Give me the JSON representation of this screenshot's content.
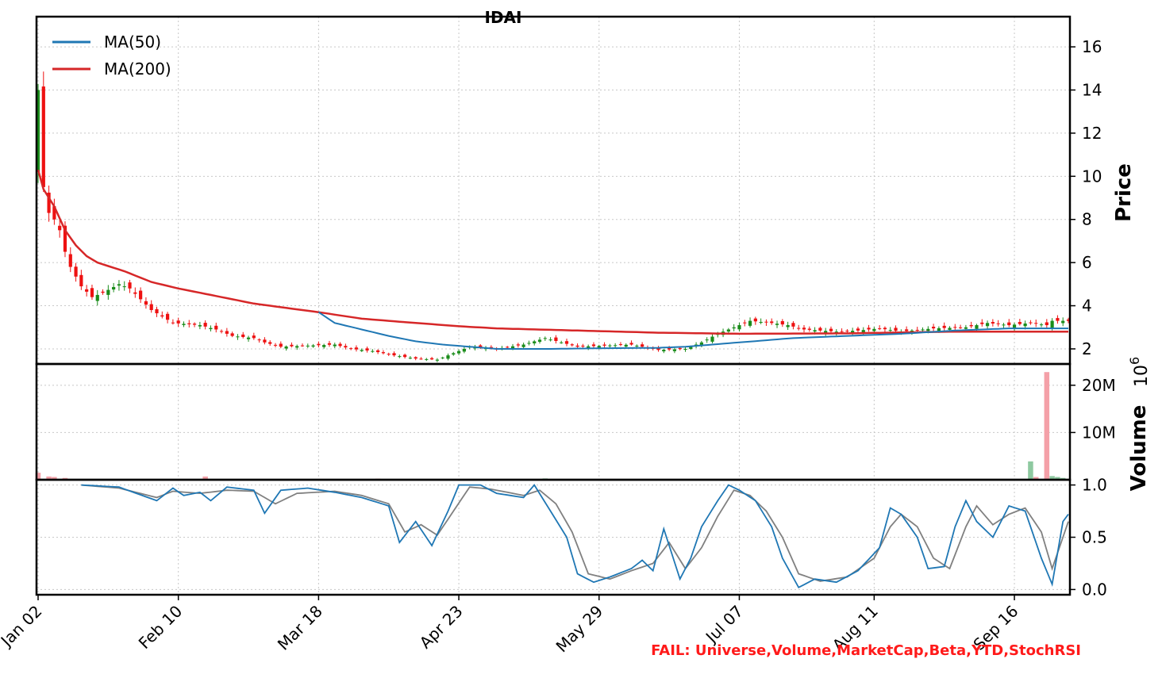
{
  "chart_data": {
    "type": "candlestick",
    "title": "IDAI",
    "dates_start": "Jan 02",
    "x_tick_labels": [
      "Jan 02",
      "Feb 10",
      "Mar 18",
      "Apr 23",
      "May 29",
      "Jul 07",
      "Aug 11",
      "Sep 16"
    ],
    "x_tick_index": [
      0,
      26,
      52,
      78,
      104,
      130,
      155,
      181
    ],
    "n_days": 192,
    "price_axis": {
      "label": "Price",
      "ticks": [
        2,
        4,
        6,
        8,
        10,
        12,
        14,
        16
      ],
      "ylim": [
        1.3,
        17.4
      ]
    },
    "volume_axis": {
      "label": "Volume",
      "exponent_label": "10",
      "exponent_sup": "6",
      "ticks": [
        10,
        20
      ],
      "tick_labels": [
        "10M",
        "20M"
      ],
      "ylim": [
        0,
        24.5
      ]
    },
    "rsi_axis": {
      "ticks": [
        0.0,
        0.5,
        1.0
      ],
      "tick_labels": [
        "0.0",
        "0.5",
        "1.0"
      ],
      "ylim": [
        -0.05,
        1.05
      ]
    },
    "legend": [
      {
        "name": "MA(50)",
        "color": "#1f77b4"
      },
      {
        "name": "MA(200)",
        "color": "#d62728"
      }
    ],
    "colors": {
      "up": "#1a8c1a",
      "down": "#ee1111",
      "ma50": "#1f77b4",
      "ma200": "#d62728",
      "vol_up": "#8ec9a0",
      "vol_down": "#f4a0a8",
      "stoch_k": "#1f77b4",
      "stoch_d": "#808080"
    },
    "close_anchors": [
      [
        0,
        14.0
      ],
      [
        1,
        9.5
      ],
      [
        2,
        8.3
      ],
      [
        3,
        8.0
      ],
      [
        4,
        7.5
      ],
      [
        5,
        6.5
      ],
      [
        6,
        5.8
      ],
      [
        8,
        4.9
      ],
      [
        10,
        4.4
      ],
      [
        12,
        4.6
      ],
      [
        15,
        5.0
      ],
      [
        17,
        4.8
      ],
      [
        19,
        4.3
      ],
      [
        21,
        3.8
      ],
      [
        23,
        3.5
      ],
      [
        25,
        3.2
      ],
      [
        30,
        3.1
      ],
      [
        33,
        2.9
      ],
      [
        36,
        2.6
      ],
      [
        40,
        2.5
      ],
      [
        42,
        2.3
      ],
      [
        45,
        2.1
      ],
      [
        50,
        2.15
      ],
      [
        55,
        2.2
      ],
      [
        58,
        2.0
      ],
      [
        62,
        1.9
      ],
      [
        66,
        1.7
      ],
      [
        70,
        1.55
      ],
      [
        74,
        1.5
      ],
      [
        77,
        1.8
      ],
      [
        80,
        2.1
      ],
      [
        85,
        2.0
      ],
      [
        90,
        2.2
      ],
      [
        94,
        2.5
      ],
      [
        97,
        2.3
      ],
      [
        100,
        2.1
      ],
      [
        105,
        2.15
      ],
      [
        110,
        2.2
      ],
      [
        115,
        1.95
      ],
      [
        120,
        2.0
      ],
      [
        123,
        2.3
      ],
      [
        126,
        2.7
      ],
      [
        129,
        3.0
      ],
      [
        132,
        3.3
      ],
      [
        136,
        3.2
      ],
      [
        139,
        3.1
      ],
      [
        142,
        2.9
      ],
      [
        148,
        2.8
      ],
      [
        152,
        2.85
      ],
      [
        156,
        2.95
      ],
      [
        160,
        2.8
      ],
      [
        166,
        2.95
      ],
      [
        172,
        3.0
      ],
      [
        176,
        3.2
      ],
      [
        180,
        3.1
      ],
      [
        184,
        3.2
      ],
      [
        187,
        3.1
      ],
      [
        188,
        3.3
      ],
      [
        191,
        3.3
      ]
    ],
    "ma50_anchors": [
      [
        52,
        3.7
      ],
      [
        55,
        3.2
      ],
      [
        60,
        2.9
      ],
      [
        65,
        2.6
      ],
      [
        70,
        2.35
      ],
      [
        75,
        2.2
      ],
      [
        80,
        2.1
      ],
      [
        85,
        2.0
      ],
      [
        95,
        2.0
      ],
      [
        105,
        2.03
      ],
      [
        115,
        2.05
      ],
      [
        120,
        2.1
      ],
      [
        130,
        2.3
      ],
      [
        140,
        2.5
      ],
      [
        150,
        2.6
      ],
      [
        160,
        2.7
      ],
      [
        170,
        2.85
      ],
      [
        180,
        2.95
      ],
      [
        191,
        2.95
      ]
    ],
    "ma200_anchors": [
      [
        0,
        10.3
      ],
      [
        1,
        9.4
      ],
      [
        3,
        8.6
      ],
      [
        5,
        7.5
      ],
      [
        7,
        6.8
      ],
      [
        9,
        6.3
      ],
      [
        11,
        6.0
      ],
      [
        16,
        5.6
      ],
      [
        21,
        5.1
      ],
      [
        26,
        4.8
      ],
      [
        32,
        4.5
      ],
      [
        40,
        4.1
      ],
      [
        46,
        3.9
      ],
      [
        52,
        3.7
      ],
      [
        60,
        3.4
      ],
      [
        70,
        3.2
      ],
      [
        78,
        3.05
      ],
      [
        85,
        2.95
      ],
      [
        100,
        2.85
      ],
      [
        115,
        2.75
      ],
      [
        130,
        2.7
      ],
      [
        150,
        2.72
      ],
      [
        170,
        2.8
      ],
      [
        191,
        2.8
      ]
    ],
    "volume_anchors": [
      [
        0,
        1.4
      ],
      [
        2,
        0.6
      ],
      [
        3,
        0.5
      ],
      [
        5,
        0.3
      ],
      [
        31,
        0.6
      ],
      [
        63,
        0.15
      ],
      [
        94,
        0.2
      ],
      [
        184,
        3.8
      ],
      [
        185,
        0.5
      ],
      [
        187,
        22.7
      ],
      [
        188,
        0.7
      ],
      [
        189,
        0.5
      ],
      [
        190,
        0.3
      ]
    ],
    "stoch_k_anchors": [
      [
        8,
        1.0
      ],
      [
        15,
        0.98
      ],
      [
        22,
        0.85
      ],
      [
        25,
        0.97
      ],
      [
        27,
        0.9
      ],
      [
        30,
        0.93
      ],
      [
        32,
        0.85
      ],
      [
        35,
        0.98
      ],
      [
        40,
        0.95
      ],
      [
        42,
        0.73
      ],
      [
        45,
        0.95
      ],
      [
        50,
        0.97
      ],
      [
        55,
        0.93
      ],
      [
        60,
        0.88
      ],
      [
        65,
        0.8
      ],
      [
        67,
        0.45
      ],
      [
        70,
        0.65
      ],
      [
        73,
        0.42
      ],
      [
        76,
        0.75
      ],
      [
        78,
        1.0
      ],
      [
        82,
        1.0
      ],
      [
        85,
        0.92
      ],
      [
        90,
        0.88
      ],
      [
        92,
        1.0
      ],
      [
        95,
        0.75
      ],
      [
        98,
        0.5
      ],
      [
        100,
        0.15
      ],
      [
        103,
        0.07
      ],
      [
        106,
        0.12
      ],
      [
        110,
        0.2
      ],
      [
        112,
        0.28
      ],
      [
        114,
        0.18
      ],
      [
        116,
        0.58
      ],
      [
        119,
        0.1
      ],
      [
        121,
        0.3
      ],
      [
        123,
        0.6
      ],
      [
        126,
        0.85
      ],
      [
        128,
        1.0
      ],
      [
        130,
        0.95
      ],
      [
        133,
        0.85
      ],
      [
        136,
        0.6
      ],
      [
        138,
        0.3
      ],
      [
        141,
        0.02
      ],
      [
        144,
        0.1
      ],
      [
        148,
        0.07
      ],
      [
        152,
        0.18
      ],
      [
        156,
        0.4
      ],
      [
        158,
        0.78
      ],
      [
        160,
        0.72
      ],
      [
        163,
        0.5
      ],
      [
        165,
        0.2
      ],
      [
        168,
        0.22
      ],
      [
        170,
        0.6
      ],
      [
        172,
        0.85
      ],
      [
        174,
        0.65
      ],
      [
        177,
        0.5
      ],
      [
        180,
        0.8
      ],
      [
        183,
        0.75
      ],
      [
        186,
        0.3
      ],
      [
        188,
        0.05
      ],
      [
        190,
        0.65
      ],
      [
        191,
        0.72
      ]
    ],
    "stoch_d_anchors": [
      [
        8,
        1.0
      ],
      [
        15,
        0.97
      ],
      [
        22,
        0.88
      ],
      [
        25,
        0.94
      ],
      [
        30,
        0.92
      ],
      [
        35,
        0.95
      ],
      [
        40,
        0.94
      ],
      [
        44,
        0.82
      ],
      [
        48,
        0.92
      ],
      [
        55,
        0.94
      ],
      [
        60,
        0.9
      ],
      [
        65,
        0.82
      ],
      [
        68,
        0.55
      ],
      [
        71,
        0.62
      ],
      [
        74,
        0.52
      ],
      [
        77,
        0.75
      ],
      [
        80,
        0.98
      ],
      [
        84,
        0.96
      ],
      [
        90,
        0.9
      ],
      [
        93,
        0.95
      ],
      [
        96,
        0.82
      ],
      [
        99,
        0.55
      ],
      [
        102,
        0.15
      ],
      [
        106,
        0.1
      ],
      [
        110,
        0.18
      ],
      [
        114,
        0.25
      ],
      [
        117,
        0.45
      ],
      [
        120,
        0.2
      ],
      [
        123,
        0.4
      ],
      [
        126,
        0.7
      ],
      [
        129,
        0.95
      ],
      [
        132,
        0.9
      ],
      [
        135,
        0.75
      ],
      [
        138,
        0.5
      ],
      [
        141,
        0.15
      ],
      [
        145,
        0.08
      ],
      [
        150,
        0.12
      ],
      [
        155,
        0.3
      ],
      [
        158,
        0.6
      ],
      [
        160,
        0.72
      ],
      [
        163,
        0.6
      ],
      [
        166,
        0.3
      ],
      [
        169,
        0.2
      ],
      [
        172,
        0.6
      ],
      [
        174,
        0.8
      ],
      [
        177,
        0.62
      ],
      [
        180,
        0.72
      ],
      [
        183,
        0.78
      ],
      [
        186,
        0.55
      ],
      [
        188,
        0.2
      ],
      [
        190,
        0.5
      ],
      [
        191,
        0.65
      ]
    ],
    "fail_note": "FAIL: Universe,Volume,MarketCap,Beta,YTD,StochRSI"
  }
}
